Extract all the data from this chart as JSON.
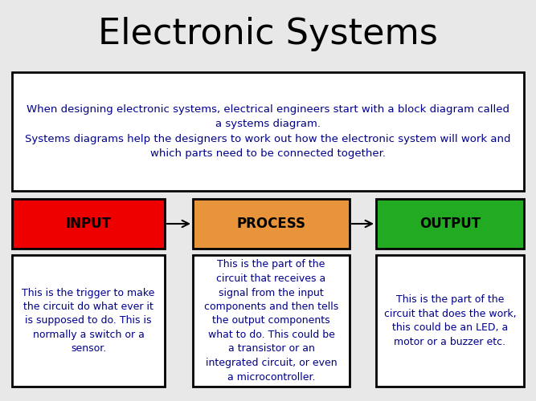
{
  "title": "Electronic Systems",
  "title_fontsize": 32,
  "bg_color": "#e8e8e8",
  "desc_text": "When designing electronic systems, electrical engineers start with a block diagram called\na systems diagram.\nSystems diagrams help the designers to work out how the electronic system will work and\nwhich parts need to be connected together.",
  "desc_fontsize": 9.5,
  "desc_text_color": "#00008b",
  "blocks": [
    {
      "label": "INPUT",
      "color": "#ee0000",
      "text_color": "#000000"
    },
    {
      "label": "PROCESS",
      "color": "#e8943a",
      "text_color": "#000000"
    },
    {
      "label": "OUTPUT",
      "color": "#22aa22",
      "text_color": "#000000"
    }
  ],
  "block_label_fontsize": 12,
  "info_texts": [
    "This is the trigger to make\nthe circuit do what ever it\nis supposed to do. This is\nnormally a switch or a\nsensor.",
    "This is the part of the\ncircuit that receives a\nsignal from the input\ncomponents and then tells\nthe output components\nwhat to do. This could be\na transistor or an\nintegrated circuit, or even\na microcontroller.",
    "This is the part of the\ncircuit that does the work,\nthis could be an LED, a\nmotor or a buzzer etc."
  ],
  "info_fontsize": 9.0,
  "info_text_color": "#00008b",
  "border_color": "#000000",
  "border_lw": 2.0,
  "white_box_color": "#ffffff"
}
